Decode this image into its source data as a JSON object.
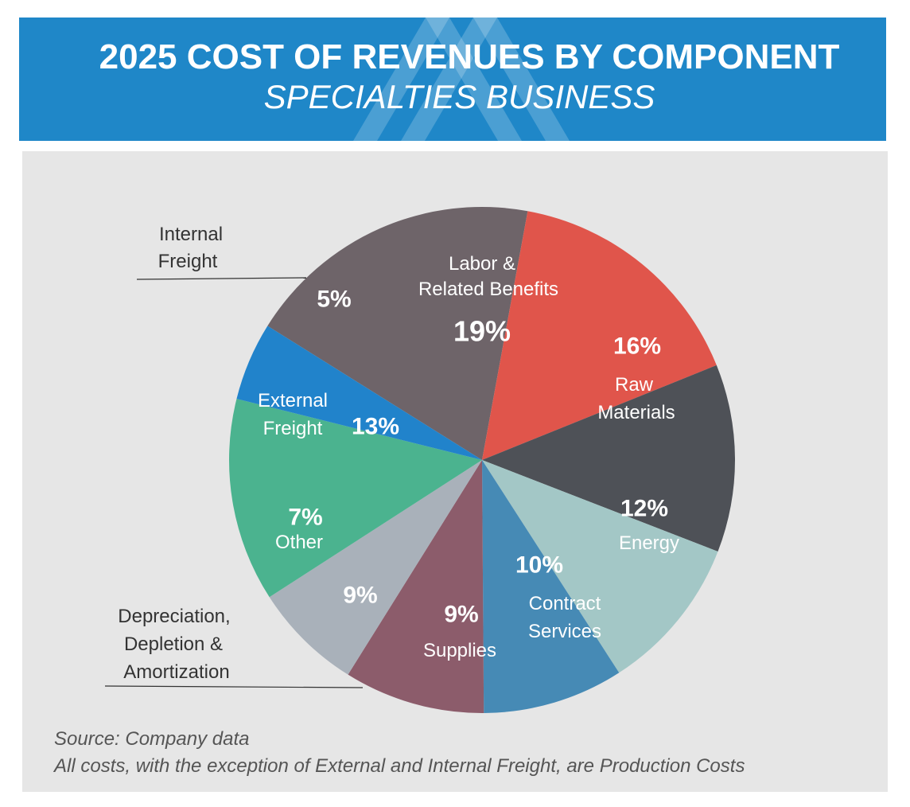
{
  "header": {
    "title": "2025 COST OF REVENUES BY COMPONENT",
    "subtitle": "SPECIALTIES BUSINESS"
  },
  "chart_data": {
    "type": "pie",
    "title": "2025 COST OF REVENUES BY COMPONENT",
    "subtitle": "SPECIALTIES BUSINESS",
    "slices": [
      {
        "label": "Labor & Related Benefits",
        "value": 19,
        "pct_label": "19%",
        "color": "#6e6469"
      },
      {
        "label": "Raw Materials",
        "value": 16,
        "pct_label": "16%",
        "color": "#e0554b"
      },
      {
        "label": "Energy",
        "value": 12,
        "pct_label": "12%",
        "color": "#4e5157"
      },
      {
        "label": "Contract Services",
        "value": 10,
        "pct_label": "10%",
        "color": "#a3c7c6"
      },
      {
        "label": "Supplies",
        "value": 9,
        "pct_label": "9%",
        "color": "#468ab5"
      },
      {
        "label": "Depreciation, Depletion & Amortization",
        "value": 9,
        "pct_label": "9%",
        "color": "#8c5c6b"
      },
      {
        "label": "Other",
        "value": 7,
        "pct_label": "7%",
        "color": "#a9b1ba"
      },
      {
        "label": "External Freight",
        "value": 13,
        "pct_label": "13%",
        "color": "#4bb38f"
      },
      {
        "label": "Internal Freight",
        "value": 5,
        "pct_label": "5%",
        "color": "#2183cb"
      }
    ]
  },
  "footer": {
    "source": "Source: Company data",
    "note": "All costs, with the exception of External and Internal Freight, are Production Costs"
  }
}
